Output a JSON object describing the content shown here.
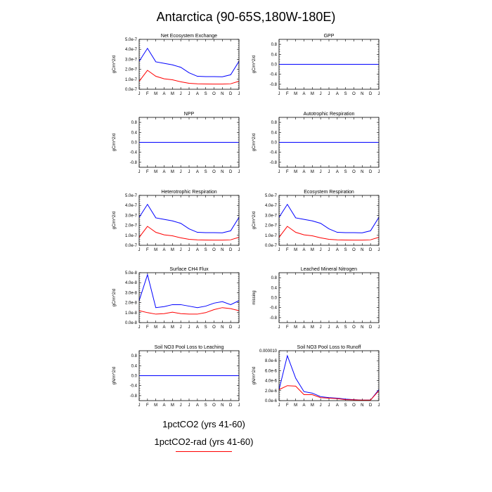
{
  "title": "Antarctica (90-65S,180W-180E)",
  "legend": [
    {
      "label": "1pctCO2 (yrs 41-60)",
      "color": "#0000ff"
    },
    {
      "label": "1pctCO2-rad (yrs 41-60)",
      "color": "#ff0000"
    }
  ],
  "colors": {
    "blue": "#0000ff",
    "red": "#ff0000"
  },
  "chart_data": [
    {
      "type": "line",
      "title": "Net Ecosystem Exchange",
      "ylabel": "gC/m^2/d",
      "x": [
        "J",
        "F",
        "M",
        "A",
        "M",
        "J",
        "J",
        "A",
        "S",
        "O",
        "N",
        "D",
        "J"
      ],
      "ylim": [
        0,
        5e-07
      ],
      "yticks": [
        "0.0e-7",
        "1.0e-7",
        "2.0e-7",
        "3.0e-7",
        "4.0e-7",
        "5.0e-7"
      ],
      "series": [
        {
          "values": [
            2.8e-07,
            4.1e-07,
            2.75e-07,
            2.6e-07,
            2.45e-07,
            2.2e-07,
            1.65e-07,
            1.3e-07,
            1.27e-07,
            1.27e-07,
            1.25e-07,
            1.45e-07,
            2.8e-07
          ],
          "color": "#0000ff"
        },
        {
          "values": [
            8e-08,
            1.9e-07,
            1.3e-07,
            1.05e-07,
            9.5e-08,
            7.5e-08,
            6e-08,
            5.5e-08,
            5.3e-08,
            5.2e-08,
            5.2e-08,
            5.5e-08,
            8e-08
          ],
          "color": "#ff0000"
        }
      ]
    },
    {
      "type": "line",
      "title": "GPP",
      "ylabel": "gC/m^2/d",
      "x": [
        "J",
        "F",
        "M",
        "A",
        "M",
        "J",
        "J",
        "A",
        "S",
        "O",
        "N",
        "D",
        "J"
      ],
      "ylim": [
        -1,
        1
      ],
      "yticks": [
        "-0.8",
        "-0.4",
        "0.0",
        "0.4",
        "0.8"
      ],
      "series": [
        {
          "values": [
            0,
            0,
            0,
            0,
            0,
            0,
            0,
            0,
            0,
            0,
            0,
            0,
            0
          ],
          "color": "#ff0000"
        },
        {
          "values": [
            0,
            0,
            0,
            0,
            0,
            0,
            0,
            0,
            0,
            0,
            0,
            0,
            0
          ],
          "color": "#0000ff"
        }
      ]
    },
    {
      "type": "line",
      "title": "NPP",
      "ylabel": "gC/m^2/d",
      "x": [
        "J",
        "F",
        "M",
        "A",
        "M",
        "J",
        "J",
        "A",
        "S",
        "O",
        "N",
        "D",
        "J"
      ],
      "ylim": [
        -1,
        1
      ],
      "yticks": [
        "-0.8",
        "-0.4",
        "0.0",
        "0.4",
        "0.8"
      ],
      "series": [
        {
          "values": [
            0,
            0,
            0,
            0,
            0,
            0,
            0,
            0,
            0,
            0,
            0,
            0,
            0
          ],
          "color": "#ff0000"
        },
        {
          "values": [
            0,
            0,
            0,
            0,
            0,
            0,
            0,
            0,
            0,
            0,
            0,
            0,
            0
          ],
          "color": "#0000ff"
        }
      ]
    },
    {
      "type": "line",
      "title": "Autotrophic Respiration",
      "ylabel": "gC/m^2/d",
      "x": [
        "J",
        "F",
        "M",
        "A",
        "M",
        "J",
        "J",
        "A",
        "S",
        "O",
        "N",
        "D",
        "J"
      ],
      "ylim": [
        -1,
        1
      ],
      "yticks": [
        "-0.8",
        "-0.4",
        "0.0",
        "0.4",
        "0.8"
      ],
      "series": [
        {
          "values": [
            0,
            0,
            0,
            0,
            0,
            0,
            0,
            0,
            0,
            0,
            0,
            0,
            0
          ],
          "color": "#ff0000"
        },
        {
          "values": [
            0,
            0,
            0,
            0,
            0,
            0,
            0,
            0,
            0,
            0,
            0,
            0,
            0
          ],
          "color": "#0000ff"
        }
      ]
    },
    {
      "type": "line",
      "title": "Heterotrophic Respiration",
      "ylabel": "gC/m^2/d",
      "x": [
        "J",
        "F",
        "M",
        "A",
        "M",
        "J",
        "J",
        "A",
        "S",
        "O",
        "N",
        "D",
        "J"
      ],
      "ylim": [
        0,
        5e-07
      ],
      "yticks": [
        "0.0e-7",
        "1.0e-7",
        "2.0e-7",
        "3.0e-7",
        "4.0e-7",
        "5.0e-7"
      ],
      "series": [
        {
          "values": [
            2.8e-07,
            4.1e-07,
            2.75e-07,
            2.6e-07,
            2.45e-07,
            2.2e-07,
            1.65e-07,
            1.3e-07,
            1.27e-07,
            1.27e-07,
            1.25e-07,
            1.45e-07,
            2.8e-07
          ],
          "color": "#0000ff"
        },
        {
          "values": [
            8e-08,
            1.9e-07,
            1.3e-07,
            1.05e-07,
            9.5e-08,
            7.5e-08,
            6e-08,
            5.5e-08,
            5.3e-08,
            5.2e-08,
            5.2e-08,
            5.5e-08,
            8e-08
          ],
          "color": "#ff0000"
        }
      ]
    },
    {
      "type": "line",
      "title": "Ecosystem Respiration",
      "ylabel": "gC/m^2/d",
      "x": [
        "J",
        "F",
        "M",
        "A",
        "M",
        "J",
        "J",
        "A",
        "S",
        "O",
        "N",
        "D",
        "J"
      ],
      "ylim": [
        0,
        5e-07
      ],
      "yticks": [
        "0.0e-7",
        "1.0e-7",
        "2.0e-7",
        "3.0e-7",
        "4.0e-7",
        "5.0e-7"
      ],
      "series": [
        {
          "values": [
            2.8e-07,
            4.1e-07,
            2.75e-07,
            2.6e-07,
            2.45e-07,
            2.2e-07,
            1.65e-07,
            1.3e-07,
            1.27e-07,
            1.27e-07,
            1.25e-07,
            1.45e-07,
            2.8e-07
          ],
          "color": "#0000ff"
        },
        {
          "values": [
            8e-08,
            1.9e-07,
            1.3e-07,
            1.05e-07,
            9.5e-08,
            7.5e-08,
            6e-08,
            5.5e-08,
            5.3e-08,
            5.2e-08,
            5.2e-08,
            5.5e-08,
            8e-08
          ],
          "color": "#ff0000"
        }
      ]
    },
    {
      "type": "line",
      "title": "Surface CH4 Flux",
      "ylabel": "gC/m^2/d",
      "x": [
        "J",
        "F",
        "M",
        "A",
        "M",
        "J",
        "J",
        "A",
        "S",
        "O",
        "N",
        "D",
        "J"
      ],
      "ylim": [
        0,
        5e-08
      ],
      "yticks": [
        "0.0e-8",
        "1.0e-8",
        "2.0e-8",
        "3.0e-8",
        "4.0e-8",
        "5.0e-8"
      ],
      "series": [
        {
          "values": [
            2.2e-08,
            4.8e-08,
            1.5e-08,
            1.6e-08,
            1.8e-08,
            1.8e-08,
            1.65e-08,
            1.5e-08,
            1.65e-08,
            1.95e-08,
            2.1e-08,
            1.8e-08,
            2.2e-08
          ],
          "color": "#0000ff"
        },
        {
          "values": [
            1.2e-08,
            1e-08,
            8.5e-09,
            9e-09,
            1.05e-08,
            9e-09,
            8.5e-09,
            8.5e-09,
            1e-08,
            1.3e-08,
            1.5e-08,
            1.4e-08,
            1.2e-08
          ],
          "color": "#ff0000"
        }
      ]
    },
    {
      "type": "line",
      "title": "Leached Mineral Nitrogen",
      "ylabel": "missing",
      "x": [
        "J",
        "F",
        "M",
        "A",
        "M",
        "J",
        "J",
        "A",
        "S",
        "O",
        "N",
        "D",
        "J"
      ],
      "ylim": [
        -1,
        1
      ],
      "yticks": [
        "-0.8",
        "-0.4",
        "0.0",
        "0.4",
        "0.8"
      ],
      "series": []
    },
    {
      "type": "line",
      "title": "Soil NO3 Pool Loss to Leaching",
      "ylabel": "gN/m^2/d",
      "x": [
        "J",
        "F",
        "M",
        "A",
        "M",
        "J",
        "J",
        "A",
        "S",
        "O",
        "N",
        "D",
        "J"
      ],
      "ylim": [
        -1,
        1
      ],
      "yticks": [
        "-0.8",
        "-0.4",
        "0.0",
        "0.4",
        "0.8"
      ],
      "series": [
        {
          "values": [
            0,
            0,
            0,
            0,
            0,
            0,
            0,
            0,
            0,
            0,
            0,
            0,
            0
          ],
          "color": "#ff0000"
        },
        {
          "values": [
            0,
            0,
            0,
            0,
            0,
            0,
            0,
            0,
            0,
            0,
            0,
            0,
            0
          ],
          "color": "#0000ff"
        }
      ]
    },
    {
      "type": "line",
      "title": "Soil NO3 Pool Loss to Runoff",
      "ylabel": "gN/m^2/d",
      "x": [
        "J",
        "F",
        "M",
        "A",
        "M",
        "J",
        "J",
        "A",
        "S",
        "O",
        "N",
        "D",
        "J"
      ],
      "ylim": [
        0,
        1e-05
      ],
      "yticks": [
        "0.0e-6",
        "2.0e-6",
        "4.0e-6",
        "6.0e-6",
        "8.0e-6",
        "0.000010"
      ],
      "series": [
        {
          "values": [
            2.2e-06,
            9e-06,
            4.5e-06,
            1.8e-06,
            1.5e-06,
            8e-07,
            6e-07,
            5e-07,
            3e-07,
            2e-07,
            1e-07,
            1e-07,
            2.2e-06
          ],
          "color": "#0000ff"
        },
        {
          "values": [
            2.2e-06,
            3e-06,
            2.9e-06,
            1.2e-06,
            1.2e-06,
            6e-07,
            5e-07,
            4e-07,
            2e-07,
            1.5e-07,
            1e-07,
            1e-07,
            2e-06
          ],
          "color": "#ff0000"
        }
      ]
    }
  ]
}
